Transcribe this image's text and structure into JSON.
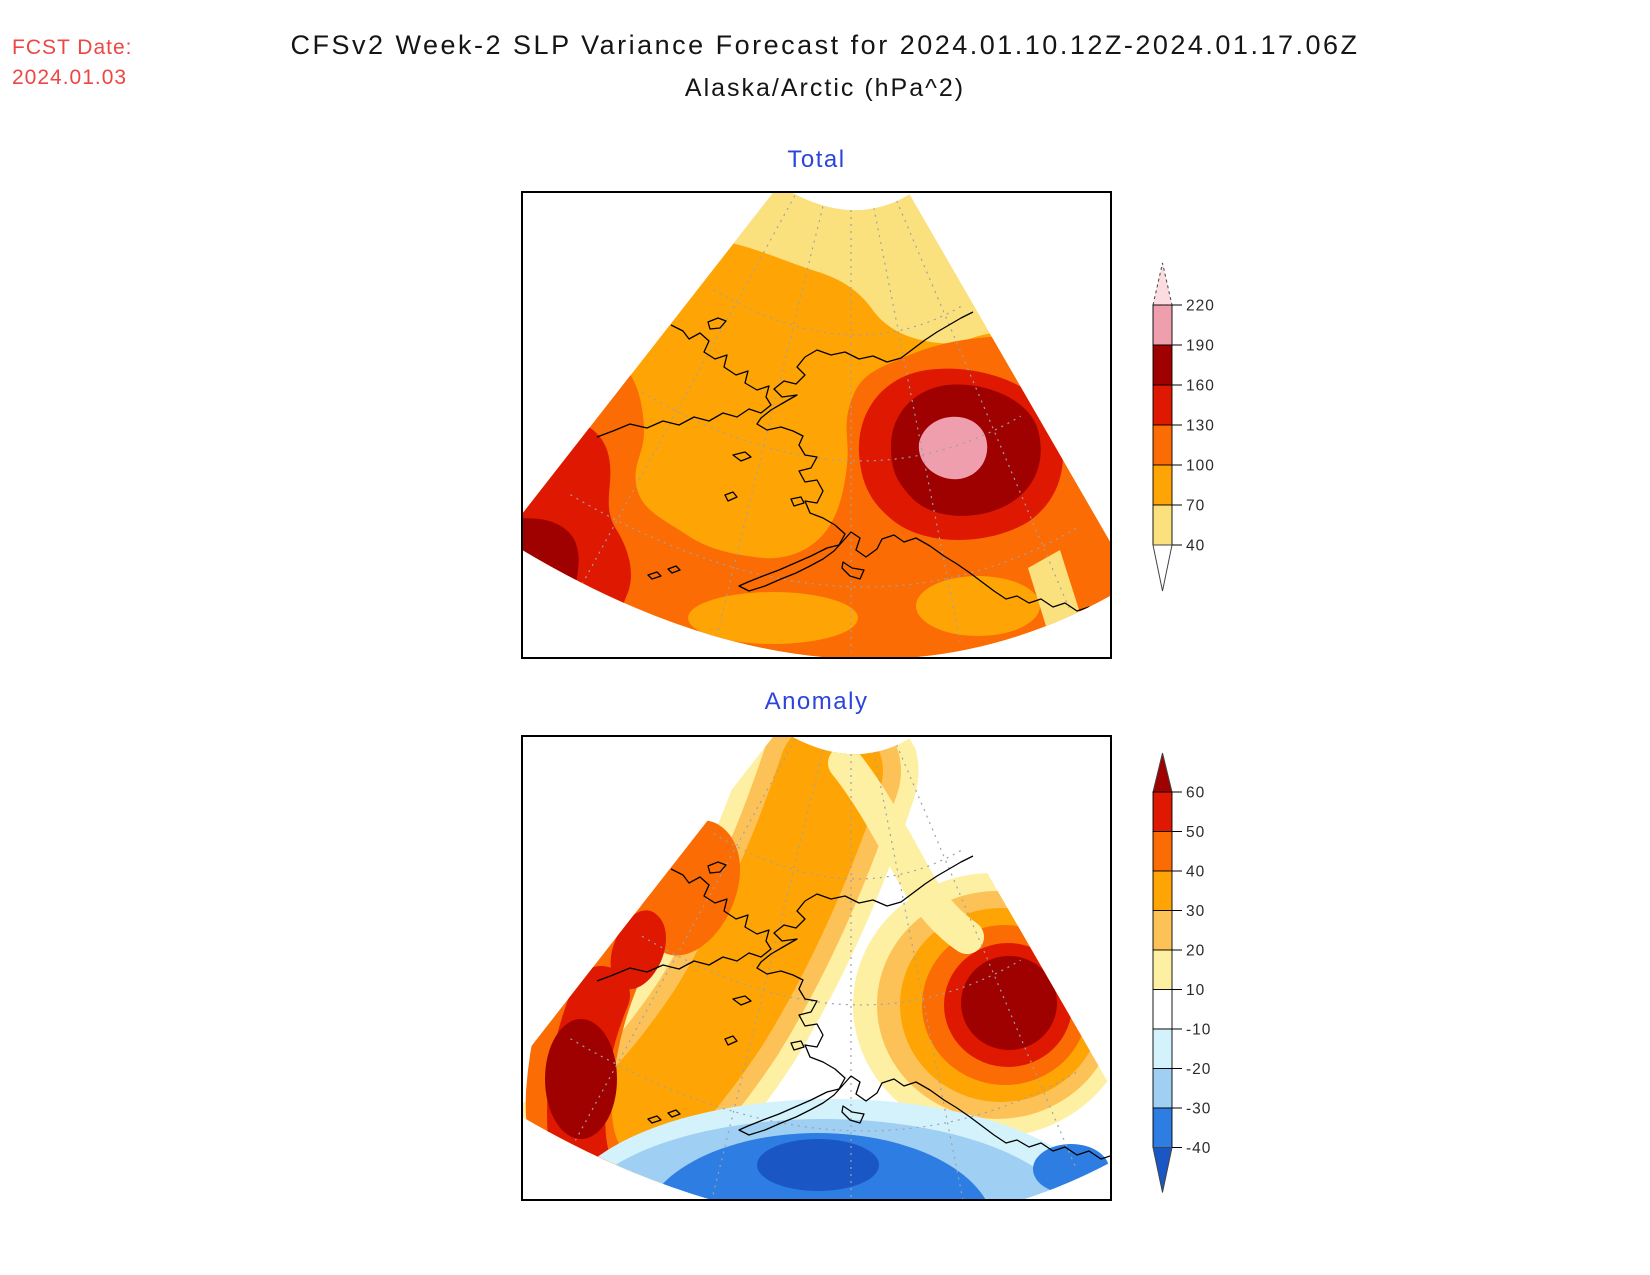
{
  "header": {
    "fcst_label": "FCST Date:",
    "fcst_date": "2024.01.03",
    "title_line1": "CFSv2 Week-2 SLP Variance Forecast for 2024.01.10.12Z-2024.01.17.06Z",
    "title_line2": "Alaska/Arctic (hPa^2)"
  },
  "panels": [
    {
      "label": "Total"
    },
    {
      "label": "Anomaly"
    }
  ],
  "chart_data": [
    {
      "type": "heatmap",
      "subtype": "filled-contour-map",
      "title": "Total",
      "variable": "Week-2 SLP variance forecast",
      "units": "hPa^2",
      "region": "Alaska/Arctic",
      "valid_period": "2024.01.10.12Z-2024.01.17.06Z",
      "initialized": "2024.01.03",
      "projection": "polar fan sector with coastlines and dotted lat/lon graticule",
      "levels": [
        40,
        70,
        100,
        130,
        160,
        190,
        220
      ],
      "band_colors": [
        "#FBE17D",
        "#FFA405",
        "#FB6C05",
        "#DF1801",
        "#9F0000",
        "#EE9EAC"
      ],
      "over_color": "#FADCE1",
      "under_color": "#FFFFFF",
      "colorbar_labels_top_to_bottom": [
        "220",
        "190",
        "160",
        "130",
        "100",
        "70",
        "40"
      ],
      "legend_position": "right",
      "features": [
        {
          "feature": "maximum",
          "value": "190-220 hPa^2 core (pink) inside 160-190 ring",
          "location": "Gulf of Alaska, south of the Alaska coast (right-center of map)"
        },
        {
          "feature": "secondary maximum",
          "value": "160-190 hPa^2",
          "location": "southwest corner of fan (western Bering Sea)"
        },
        {
          "feature": "minimum",
          "value": "40-70 hPa^2 band",
          "location": "Arctic, along top of fan"
        },
        {
          "feature": "background",
          "value": "70-130 hPa^2",
          "location": "interior Alaska, Bering Sea and bottom of fan"
        }
      ]
    },
    {
      "type": "heatmap",
      "subtype": "filled-contour-map",
      "title": "Anomaly",
      "variable": "Week-2 SLP variance anomaly",
      "units": "hPa^2",
      "region": "Alaska/Arctic",
      "valid_period": "2024.01.10.12Z-2024.01.17.06Z",
      "initialized": "2024.01.03",
      "projection": "polar fan sector with coastlines and dotted lat/lon graticule",
      "levels": [
        -40,
        -30,
        -20,
        -10,
        10,
        20,
        30,
        40,
        50,
        60
      ],
      "band_colors": [
        "#2E7DE3",
        "#9FCFF2",
        "#D4F2FB",
        "#FFFFFF",
        "#FDF0A2",
        "#FDC257",
        "#FFA405",
        "#FB6C05",
        "#DF1801"
      ],
      "over_color": "#9F0000",
      "under_color": "#1A57C4",
      "colorbar_labels_top_to_bottom": [
        "60",
        "50",
        "40",
        "30",
        "20",
        "10",
        "-10",
        "-20",
        "-30",
        "-40"
      ],
      "legend_position": "right",
      "features": [
        {
          "feature": "positive maximum",
          "value": "> 60 hPa^2 (dark red)",
          "location": "Gulf of Alaska (right-center of map)"
        },
        {
          "feature": "positive maximum",
          "value": "> 60 hPa^2 (dark red)",
          "location": "western Bering Sea along lower-left fan edge"
        },
        {
          "feature": "negative minimum",
          "value": "< -40 hPa^2 (dark blue)",
          "location": "North Pacific south of the Alaska Peninsula (bottom center)"
        },
        {
          "feature": "near-zero band",
          "value": "-10 to 10 hPa^2 (white)",
          "location": "swath across central/southern Alaska separating warm and cold anomalies"
        }
      ]
    }
  ],
  "ui_colors": {
    "fcst_red": "#EE4545",
    "title_black": "#151515",
    "panel_label_blue": "#2B44DC",
    "tick_label": "#2B2B2B",
    "coastline": "#000000",
    "graticule": "#9AA3AC",
    "panel_border": "#000000"
  }
}
